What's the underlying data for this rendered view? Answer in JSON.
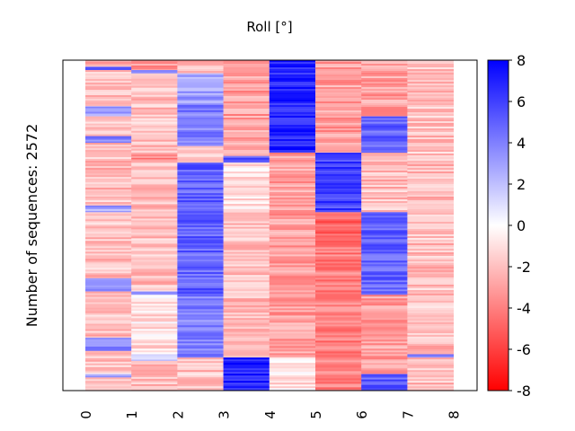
{
  "chart_data": {
    "type": "heatmap",
    "title": "Roll [°]",
    "ylabel": "Number of sequences: 2572",
    "xlabel": "",
    "x_ticks": [
      "0",
      "1",
      "2",
      "3",
      "4",
      "5",
      "6",
      "7",
      "8"
    ],
    "n_rows": 2572,
    "colormap": {
      "name": "bwr",
      "low": "#ff0000",
      "mid": "#ffffff",
      "high": "#0000ff"
    },
    "colorbar": {
      "range": [
        -8,
        8
      ],
      "ticks": [
        "8",
        "6",
        "4",
        "2",
        "0",
        "-2",
        "-4",
        "-6",
        "-8"
      ]
    },
    "blocks": [
      {
        "column": 0,
        "segments": [
          {
            "from": 0.0,
            "to": 0.02,
            "mean": -3
          },
          {
            "from": 0.02,
            "to": 0.03,
            "mean": 5
          },
          {
            "from": 0.03,
            "to": 0.14,
            "mean": -2
          },
          {
            "from": 0.14,
            "to": 0.17,
            "mean": 3
          },
          {
            "from": 0.17,
            "to": 0.23,
            "mean": -2
          },
          {
            "from": 0.23,
            "to": 0.25,
            "mean": 4
          },
          {
            "from": 0.25,
            "to": 0.44,
            "mean": -2
          },
          {
            "from": 0.44,
            "to": 0.46,
            "mean": 3
          },
          {
            "from": 0.46,
            "to": 0.66,
            "mean": -2
          },
          {
            "from": 0.66,
            "to": 0.7,
            "mean": 3
          },
          {
            "from": 0.7,
            "to": 0.84,
            "mean": -2
          },
          {
            "from": 0.84,
            "to": 0.88,
            "mean": 4
          },
          {
            "from": 0.88,
            "to": 0.95,
            "mean": -2
          },
          {
            "from": 0.95,
            "to": 0.96,
            "mean": 3
          },
          {
            "from": 0.96,
            "to": 1.0,
            "mean": -2
          }
        ]
      },
      {
        "column": 1,
        "segments": [
          {
            "from": 0.0,
            "to": 0.03,
            "mean": -3
          },
          {
            "from": 0.03,
            "to": 0.04,
            "mean": 4
          },
          {
            "from": 0.04,
            "to": 0.28,
            "mean": -2
          },
          {
            "from": 0.28,
            "to": 0.3,
            "mean": -4
          },
          {
            "from": 0.3,
            "to": 0.7,
            "mean": -2
          },
          {
            "from": 0.7,
            "to": 0.71,
            "mean": 3
          },
          {
            "from": 0.71,
            "to": 0.89,
            "mean": -1
          },
          {
            "from": 0.89,
            "to": 0.91,
            "mean": 2
          },
          {
            "from": 0.91,
            "to": 1.0,
            "mean": -2
          }
        ]
      },
      {
        "column": 2,
        "segments": [
          {
            "from": 0.0,
            "to": 0.04,
            "mean": -2
          },
          {
            "from": 0.04,
            "to": 0.13,
            "mean": 3
          },
          {
            "from": 0.13,
            "to": 0.26,
            "mean": 4
          },
          {
            "from": 0.26,
            "to": 0.31,
            "mean": -2
          },
          {
            "from": 0.31,
            "to": 0.71,
            "mean": 5
          },
          {
            "from": 0.71,
            "to": 0.9,
            "mean": 4
          },
          {
            "from": 0.9,
            "to": 1.0,
            "mean": -2
          }
        ]
      },
      {
        "column": 3,
        "segments": [
          {
            "from": 0.0,
            "to": 0.29,
            "mean": -3
          },
          {
            "from": 0.29,
            "to": 0.31,
            "mean": 5
          },
          {
            "from": 0.31,
            "to": 0.45,
            "mean": -1
          },
          {
            "from": 0.45,
            "to": 0.65,
            "mean": -2
          },
          {
            "from": 0.65,
            "to": 0.9,
            "mean": -2
          },
          {
            "from": 0.9,
            "to": 1.0,
            "mean": 7
          }
        ]
      },
      {
        "column": 4,
        "segments": [
          {
            "from": 0.0,
            "to": 0.28,
            "mean": 7
          },
          {
            "from": 0.28,
            "to": 0.55,
            "mean": -3
          },
          {
            "from": 0.55,
            "to": 0.9,
            "mean": -3
          },
          {
            "from": 0.9,
            "to": 1.0,
            "mean": -1
          }
        ]
      },
      {
        "column": 5,
        "segments": [
          {
            "from": 0.0,
            "to": 0.28,
            "mean": -3
          },
          {
            "from": 0.28,
            "to": 0.46,
            "mean": 6
          },
          {
            "from": 0.46,
            "to": 0.55,
            "mean": -5
          },
          {
            "from": 0.55,
            "to": 1.0,
            "mean": -4
          }
        ]
      },
      {
        "column": 6,
        "segments": [
          {
            "from": 0.0,
            "to": 0.17,
            "mean": -3
          },
          {
            "from": 0.17,
            "to": 0.28,
            "mean": 5
          },
          {
            "from": 0.28,
            "to": 0.46,
            "mean": -2
          },
          {
            "from": 0.46,
            "to": 0.71,
            "mean": 5
          },
          {
            "from": 0.71,
            "to": 0.95,
            "mean": -3
          },
          {
            "from": 0.95,
            "to": 1.0,
            "mean": 5
          }
        ]
      },
      {
        "column": 7,
        "segments": [
          {
            "from": 0.0,
            "to": 0.89,
            "mean": -2
          },
          {
            "from": 0.89,
            "to": 0.9,
            "mean": 4
          },
          {
            "from": 0.9,
            "to": 1.0,
            "mean": -2
          }
        ]
      }
    ]
  }
}
